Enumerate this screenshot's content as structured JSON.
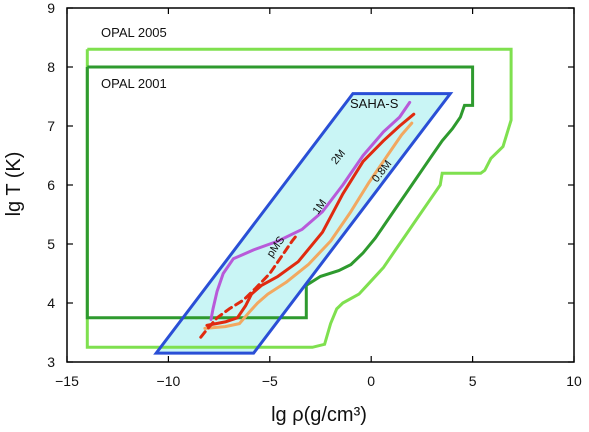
{
  "chart_data": {
    "type": "line",
    "title": "",
    "xlabel": "lg ρ(g/cm³)",
    "ylabel": "lg T (K)",
    "xlim": [
      -15,
      10
    ],
    "ylim": [
      3,
      9
    ],
    "xticks": [
      -15,
      -10,
      -5,
      0,
      5,
      10
    ],
    "yticks": [
      3,
      4,
      5,
      6,
      7,
      8,
      9
    ],
    "grid": false,
    "colors": {
      "opal2005": "#7fe04f",
      "opal2001": "#2e9a2e",
      "saha_fill": "#c9f5f5",
      "saha_edge": "#2a4fd6",
      "m2": "#b85ad9",
      "m1": "#e02a10",
      "m08": "#f2a860",
      "pms": "#e02a10"
    },
    "regions": [
      {
        "name": "OPAL 2005",
        "points": [
          [
            -14,
            8.3
          ],
          [
            6.9,
            8.3
          ],
          [
            6.9,
            7.1
          ],
          [
            6.5,
            6.65
          ],
          [
            5.9,
            6.45
          ],
          [
            5.6,
            6.25
          ],
          [
            5.4,
            6.2
          ],
          [
            3.5,
            6.2
          ],
          [
            3.4,
            6.0
          ],
          [
            2.8,
            5.7
          ],
          [
            2.2,
            5.4
          ],
          [
            1.7,
            5.15
          ],
          [
            1.2,
            4.9
          ],
          [
            0.6,
            4.6
          ],
          [
            -0.2,
            4.3
          ],
          [
            -0.6,
            4.15
          ],
          [
            -1.4,
            4.0
          ],
          [
            -1.7,
            3.9
          ],
          [
            -2.0,
            3.65
          ],
          [
            -2.3,
            3.3
          ],
          [
            -2.9,
            3.25
          ],
          [
            -14,
            3.25
          ],
          [
            -14,
            8.3
          ]
        ]
      },
      {
        "name": "OPAL 2001",
        "points": [
          [
            -14,
            8.0
          ],
          [
            5.0,
            8.0
          ],
          [
            5.0,
            7.35
          ],
          [
            4.6,
            7.35
          ],
          [
            4.4,
            7.15
          ],
          [
            4.0,
            6.95
          ],
          [
            3.5,
            6.75
          ],
          [
            3.0,
            6.5
          ],
          [
            2.6,
            6.3
          ],
          [
            2.2,
            6.1
          ],
          [
            1.7,
            5.85
          ],
          [
            1.2,
            5.6
          ],
          [
            0.7,
            5.35
          ],
          [
            0.2,
            5.1
          ],
          [
            -0.4,
            4.85
          ],
          [
            -1.0,
            4.65
          ],
          [
            -1.6,
            4.55
          ],
          [
            -2.5,
            4.45
          ],
          [
            -3.2,
            4.3
          ],
          [
            -3.2,
            3.75
          ],
          [
            -14,
            3.75
          ],
          [
            -14,
            8.0
          ]
        ]
      },
      {
        "name": "SAHA-S",
        "points": [
          [
            -10.6,
            3.15
          ],
          [
            -5.8,
            3.15
          ],
          [
            3.9,
            7.55
          ],
          [
            -0.9,
            7.55
          ],
          [
            -10.6,
            3.15
          ]
        ]
      }
    ],
    "series": [
      {
        "name": "2M",
        "line": "solid",
        "points": [
          [
            -7.9,
            3.72
          ],
          [
            -7.8,
            3.9
          ],
          [
            -7.6,
            4.2
          ],
          [
            -7.3,
            4.5
          ],
          [
            -6.8,
            4.75
          ],
          [
            -5.8,
            4.9
          ],
          [
            -4.6,
            5.05
          ],
          [
            -3.4,
            5.25
          ],
          [
            -2.4,
            5.55
          ],
          [
            -1.4,
            6.0
          ],
          [
            -0.4,
            6.5
          ],
          [
            0.6,
            6.9
          ],
          [
            1.4,
            7.15
          ],
          [
            1.9,
            7.4
          ]
        ]
      },
      {
        "name": "1M",
        "line": "solid",
        "points": [
          [
            -8.1,
            3.62
          ],
          [
            -7.2,
            3.68
          ],
          [
            -6.6,
            3.75
          ],
          [
            -6.2,
            3.95
          ],
          [
            -5.9,
            4.15
          ],
          [
            -5.4,
            4.3
          ],
          [
            -4.6,
            4.45
          ],
          [
            -3.6,
            4.7
          ],
          [
            -2.4,
            5.2
          ],
          [
            -1.4,
            5.85
          ],
          [
            -0.4,
            6.4
          ],
          [
            0.6,
            6.75
          ],
          [
            1.4,
            7.0
          ],
          [
            2.1,
            7.2
          ]
        ]
      },
      {
        "name": "0.8M",
        "line": "solid",
        "points": [
          [
            -8.2,
            3.57
          ],
          [
            -7.2,
            3.6
          ],
          [
            -6.5,
            3.65
          ],
          [
            -6.0,
            3.85
          ],
          [
            -5.6,
            4.0
          ],
          [
            -5.1,
            4.15
          ],
          [
            -4.2,
            4.35
          ],
          [
            -3.1,
            4.65
          ],
          [
            -2.0,
            5.05
          ],
          [
            -1.0,
            5.55
          ],
          [
            -0.1,
            6.05
          ],
          [
            0.8,
            6.5
          ],
          [
            1.5,
            6.85
          ],
          [
            2.0,
            7.05
          ]
        ]
      },
      {
        "name": "pMS",
        "line": "dashed",
        "points": [
          [
            -8.4,
            3.42
          ],
          [
            -8.1,
            3.55
          ],
          [
            -7.6,
            3.75
          ],
          [
            -7.0,
            3.9
          ],
          [
            -6.3,
            4.05
          ],
          [
            -5.7,
            4.25
          ],
          [
            -5.0,
            4.5
          ],
          [
            -4.4,
            4.8
          ],
          [
            -3.9,
            5.05
          ],
          [
            -3.6,
            5.18
          ]
        ]
      }
    ],
    "annotations": {
      "opal2005": "OPAL 2005",
      "opal2001": "OPAL 2001",
      "saha": "SAHA-S",
      "m2": "2M",
      "m1": "1M",
      "m08": "0.8M",
      "pms": "pMS"
    }
  }
}
